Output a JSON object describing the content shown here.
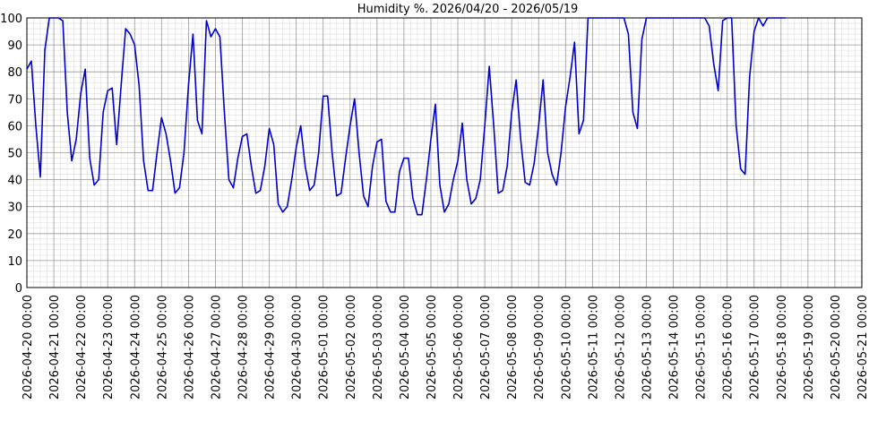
{
  "chart_data": {
    "type": "line",
    "title": "Humidity %. 2026/04/20 - 2026/05/19",
    "x": [
      "2026-04-20 00:00",
      "2026-04-20 04:00",
      "2026-04-20 08:00",
      "2026-04-20 12:00",
      "2026-04-20 16:00",
      "2026-04-20 20:00",
      "2026-04-21 00:00",
      "2026-04-21 04:00",
      "2026-04-21 08:00",
      "2026-04-21 12:00",
      "2026-04-21 16:00",
      "2026-04-21 20:00",
      "2026-04-22 00:00",
      "2026-04-22 04:00",
      "2026-04-22 08:00",
      "2026-04-22 12:00",
      "2026-04-22 16:00",
      "2026-04-22 20:00",
      "2026-04-23 00:00",
      "2026-04-23 04:00",
      "2026-04-23 08:00",
      "2026-04-23 12:00",
      "2026-04-23 16:00",
      "2026-04-23 20:00",
      "2026-04-24 00:00",
      "2026-04-24 04:00",
      "2026-04-24 08:00",
      "2026-04-24 12:00",
      "2026-04-24 16:00",
      "2026-04-24 20:00",
      "2026-04-25 00:00",
      "2026-04-25 04:00",
      "2026-04-25 08:00",
      "2026-04-25 12:00",
      "2026-04-25 16:00",
      "2026-04-25 20:00",
      "2026-04-26 00:00",
      "2026-04-26 04:00",
      "2026-04-26 08:00",
      "2026-04-26 12:00",
      "2026-04-26 16:00",
      "2026-04-26 20:00",
      "2026-04-27 00:00",
      "2026-04-27 04:00",
      "2026-04-27 08:00",
      "2026-04-27 12:00",
      "2026-04-27 16:00",
      "2026-04-27 20:00",
      "2026-04-28 00:00",
      "2026-04-28 04:00",
      "2026-04-28 08:00",
      "2026-04-28 12:00",
      "2026-04-28 16:00",
      "2026-04-28 20:00",
      "2026-04-29 00:00",
      "2026-04-29 04:00",
      "2026-04-29 08:00",
      "2026-04-29 12:00",
      "2026-04-29 16:00",
      "2026-04-29 20:00",
      "2026-04-30 00:00",
      "2026-04-30 04:00",
      "2026-04-30 08:00",
      "2026-04-30 12:00",
      "2026-04-30 16:00",
      "2026-04-30 20:00",
      "2026-05-01 00:00",
      "2026-05-01 04:00",
      "2026-05-01 08:00",
      "2026-05-01 12:00",
      "2026-05-01 16:00",
      "2026-05-01 20:00",
      "2026-05-02 00:00",
      "2026-05-02 04:00",
      "2026-05-02 08:00",
      "2026-05-02 12:00",
      "2026-05-02 16:00",
      "2026-05-02 20:00",
      "2026-05-03 00:00",
      "2026-05-03 04:00",
      "2026-05-03 08:00",
      "2026-05-03 12:00",
      "2026-05-03 16:00",
      "2026-05-03 20:00",
      "2026-05-04 00:00",
      "2026-05-04 04:00",
      "2026-05-04 08:00",
      "2026-05-04 12:00",
      "2026-05-04 16:00",
      "2026-05-04 20:00",
      "2026-05-05 00:00",
      "2026-05-05 04:00",
      "2026-05-05 08:00",
      "2026-05-05 12:00",
      "2026-05-05 16:00",
      "2026-05-05 20:00",
      "2026-05-06 00:00",
      "2026-05-06 04:00",
      "2026-05-06 08:00",
      "2026-05-06 12:00",
      "2026-05-06 16:00",
      "2026-05-06 20:00",
      "2026-05-07 00:00",
      "2026-05-07 04:00",
      "2026-05-07 08:00",
      "2026-05-07 12:00",
      "2026-05-07 16:00",
      "2026-05-07 20:00",
      "2026-05-08 00:00",
      "2026-05-08 04:00",
      "2026-05-08 08:00",
      "2026-05-08 12:00",
      "2026-05-08 16:00",
      "2026-05-08 20:00",
      "2026-05-09 00:00",
      "2026-05-09 04:00",
      "2026-05-09 08:00",
      "2026-05-09 12:00",
      "2026-05-09 16:00",
      "2026-05-09 20:00",
      "2026-05-10 00:00",
      "2026-05-10 04:00",
      "2026-05-10 08:00",
      "2026-05-10 12:00",
      "2026-05-10 16:00",
      "2026-05-10 20:00",
      "2026-05-11 00:00",
      "2026-05-11 04:00",
      "2026-05-11 08:00",
      "2026-05-11 12:00",
      "2026-05-11 16:00",
      "2026-05-11 20:00",
      "2026-05-12 00:00",
      "2026-05-12 04:00",
      "2026-05-12 08:00",
      "2026-05-12 12:00",
      "2026-05-12 16:00",
      "2026-05-12 20:00",
      "2026-05-13 00:00",
      "2026-05-13 04:00",
      "2026-05-13 08:00",
      "2026-05-13 12:00",
      "2026-05-13 16:00",
      "2026-05-13 20:00",
      "2026-05-14 00:00",
      "2026-05-14 04:00",
      "2026-05-14 08:00",
      "2026-05-14 12:00",
      "2026-05-14 16:00",
      "2026-05-14 20:00",
      "2026-05-15 00:00",
      "2026-05-15 04:00",
      "2026-05-15 08:00",
      "2026-05-15 12:00",
      "2026-05-15 16:00",
      "2026-05-15 20:00",
      "2026-05-16 00:00",
      "2026-05-16 04:00",
      "2026-05-16 08:00",
      "2026-05-16 12:00",
      "2026-05-16 16:00",
      "2026-05-16 20:00",
      "2026-05-17 00:00",
      "2026-05-17 04:00",
      "2026-05-17 08:00",
      "2026-05-17 12:00",
      "2026-05-17 16:00",
      "2026-05-17 20:00",
      "2026-05-18 00:00",
      "2026-05-18 04:00"
    ],
    "series": [
      {
        "color": "#0000cc",
        "values": [
          81,
          84,
          60,
          41,
          88,
          100,
          100,
          100,
          99,
          65,
          47,
          55,
          72,
          81,
          48,
          38,
          40,
          65,
          73,
          74,
          53,
          75,
          96,
          94,
          90,
          75,
          47,
          36,
          36,
          50,
          63,
          57,
          47,
          35,
          37,
          50,
          75,
          94,
          62,
          57,
          99,
          93,
          96,
          93,
          65,
          40,
          37,
          48,
          56,
          57,
          45,
          35,
          36,
          45,
          59,
          53,
          31,
          28,
          30,
          40,
          52,
          60,
          45,
          36,
          38,
          50,
          71,
          71,
          50,
          34,
          35,
          48,
          60,
          70,
          50,
          34,
          30,
          45,
          54,
          55,
          32,
          28,
          28,
          43,
          48,
          48,
          33,
          27,
          27,
          40,
          55,
          68,
          38,
          28,
          31,
          40,
          47,
          61,
          40,
          31,
          33,
          40,
          60,
          82,
          60,
          35,
          36,
          45,
          65,
          77,
          55,
          39,
          38,
          46,
          60,
          77,
          50,
          42,
          38,
          50,
          67,
          78,
          91,
          57,
          62,
          100,
          100,
          100,
          100,
          100,
          100,
          100,
          100,
          100,
          94,
          65,
          59,
          92,
          100,
          100,
          100,
          100,
          100,
          100,
          100,
          100,
          100,
          100,
          100,
          100,
          100,
          100,
          97,
          83,
          73,
          99,
          100,
          100,
          60,
          44,
          42,
          78,
          95,
          100,
          97,
          100,
          100,
          100,
          100,
          100
        ]
      }
    ],
    "xlim": [
      "2026-04-20 00:00",
      "2026-05-21 00:00"
    ],
    "xticks": [
      "2026-04-20 00:00",
      "2026-04-21 00:00",
      "2026-04-22 00:00",
      "2026-04-23 00:00",
      "2026-04-24 00:00",
      "2026-04-25 00:00",
      "2026-04-26 00:00",
      "2026-04-27 00:00",
      "2026-04-28 00:00",
      "2026-04-29 00:00",
      "2026-04-30 00:00",
      "2026-05-01 00:00",
      "2026-05-02 00:00",
      "2026-05-03 00:00",
      "2026-05-04 00:00",
      "2026-05-05 00:00",
      "2026-05-06 00:00",
      "2026-05-07 00:00",
      "2026-05-08 00:00",
      "2026-05-09 00:00",
      "2026-05-10 00:00",
      "2026-05-11 00:00",
      "2026-05-12 00:00",
      "2026-05-13 00:00",
      "2026-05-14 00:00",
      "2026-05-15 00:00",
      "2026-05-16 00:00",
      "2026-05-17 00:00",
      "2026-05-18 00:00",
      "2026-05-19 00:00",
      "2026-05-20 00:00",
      "2026-05-21 00:00"
    ],
    "ylim": [
      0,
      100
    ],
    "yticks": [
      0,
      10,
      20,
      30,
      40,
      50,
      60,
      70,
      80,
      90,
      100
    ],
    "grid": true,
    "minor_grid": true
  }
}
